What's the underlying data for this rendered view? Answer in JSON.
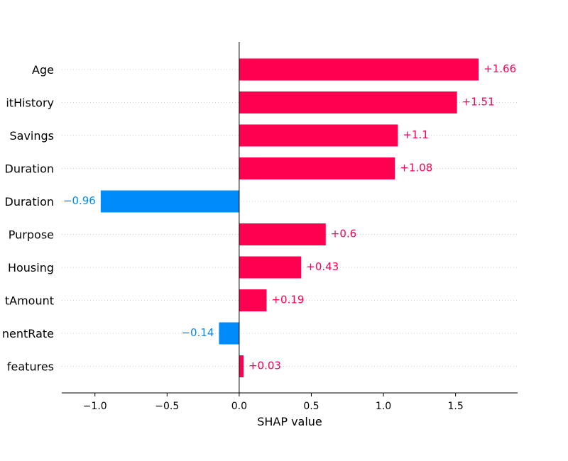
{
  "chart_data": {
    "type": "bar",
    "orientation": "horizontal",
    "xlabel": "SHAP value",
    "categories": [
      "Age",
      "itHistory",
      "Savings",
      "Duration",
      "Duration",
      "Purpose",
      "Housing",
      "tAmount",
      "nentRate",
      "features"
    ],
    "values": [
      1.66,
      1.51,
      1.1,
      1.08,
      -0.96,
      0.6,
      0.43,
      0.19,
      -0.14,
      0.03
    ],
    "value_labels": [
      "+1.66",
      "+1.51",
      "+1.1",
      "+1.08",
      "−0.96",
      "+0.6",
      "+0.43",
      "+0.19",
      "−0.14",
      "+0.03"
    ],
    "xticks": [
      -1.0,
      -0.5,
      0.0,
      0.5,
      1.0,
      1.5
    ],
    "xtick_labels": [
      "−1.0",
      "−0.5",
      "0.0",
      "0.5",
      "1.0",
      "1.5"
    ],
    "xlim": [
      -1.23,
      1.93
    ],
    "grid": "horizontal dotted row guides",
    "positive_color": "#ff0051",
    "negative_color": "#008bfb"
  }
}
